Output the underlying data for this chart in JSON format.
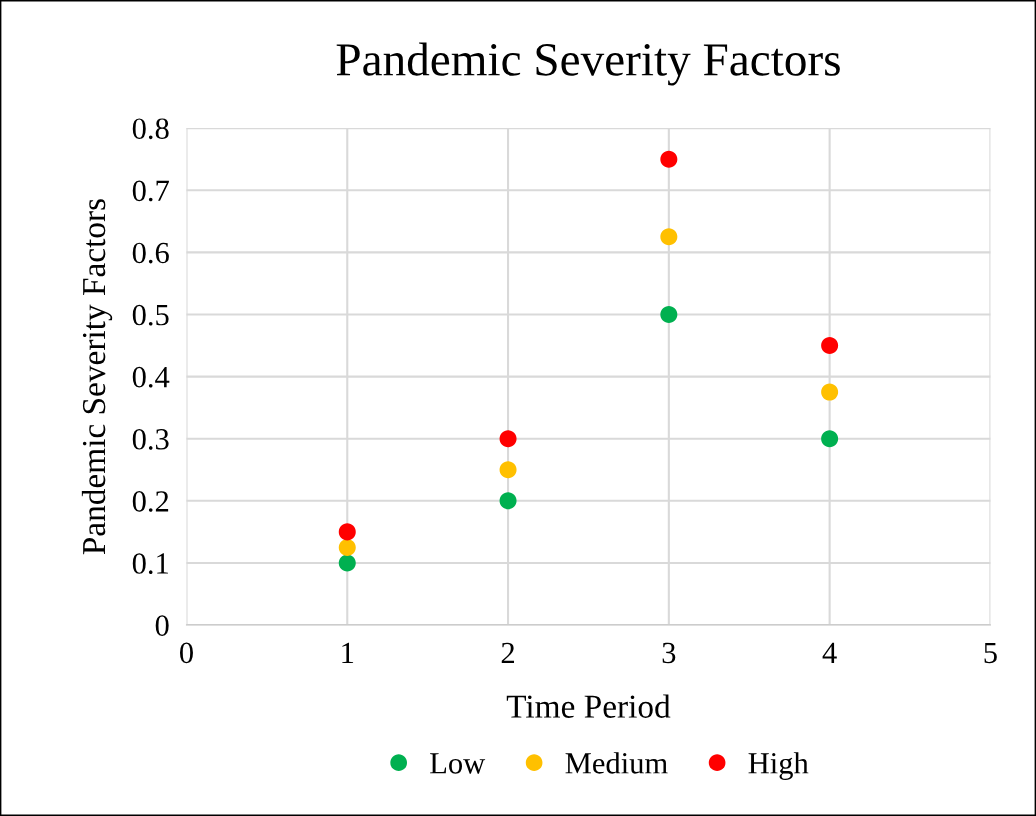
{
  "chart_data": {
    "type": "scatter",
    "title": "Pandemic Severity Factors",
    "xlabel": "Time Period",
    "ylabel": "Pandemic Severity Factors",
    "x": [
      1,
      2,
      3,
      4
    ],
    "series": [
      {
        "name": "Low",
        "color": "#00b050",
        "values": [
          0.1,
          0.2,
          0.5,
          0.3
        ]
      },
      {
        "name": "Medium",
        "color": "#ffc000",
        "values": [
          0.125,
          0.25,
          0.625,
          0.375
        ]
      },
      {
        "name": "High",
        "color": "#ff0000",
        "values": [
          0.15,
          0.3,
          0.75,
          0.45
        ]
      }
    ],
    "xlim": [
      0,
      5
    ],
    "xticks": [
      0,
      1,
      2,
      3,
      4,
      5
    ],
    "ylim": [
      0,
      0.8
    ],
    "yticks": [
      0,
      0.1,
      0.2,
      0.3,
      0.4,
      0.5,
      0.6,
      0.7,
      0.8
    ],
    "grid": true,
    "legend": "bottom",
    "marker": "circle"
  }
}
